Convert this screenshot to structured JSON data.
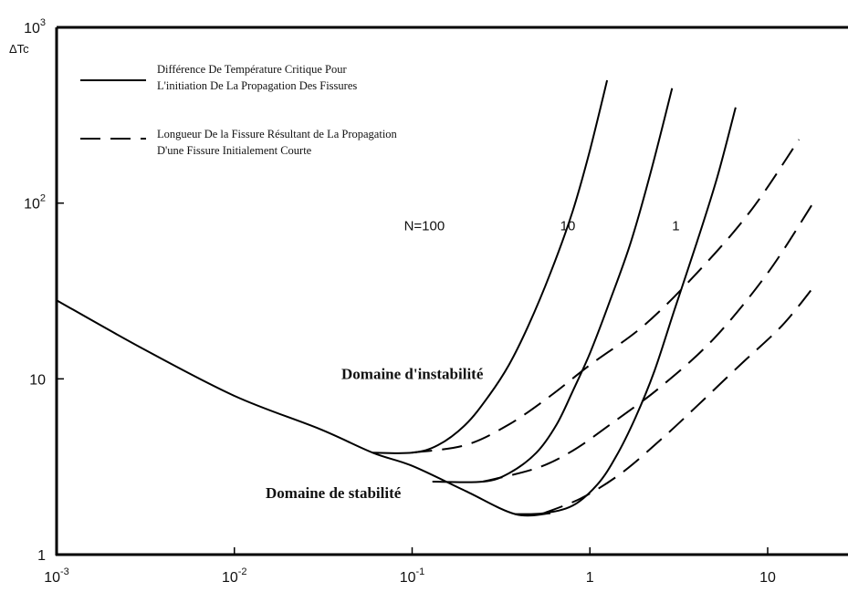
{
  "chart_data": {
    "type": "line",
    "title": "",
    "xlabel": "",
    "ylabel": "ΔTc",
    "xscale": "log",
    "yscale": "log",
    "xlim": [
      0.001,
      20
    ],
    "ylim": [
      1,
      1000
    ],
    "grid": false,
    "x_ticks": [
      {
        "value": 0.001,
        "base": "10",
        "exp": "-3"
      },
      {
        "value": 0.01,
        "base": "10",
        "exp": "-2"
      },
      {
        "value": 0.1,
        "base": "10",
        "exp": "-1"
      },
      {
        "value": 1,
        "base": "1",
        "exp": ""
      },
      {
        "value": 10,
        "base": "10",
        "exp": ""
      }
    ],
    "y_ticks": [
      {
        "value": 1,
        "base": "1",
        "exp": ""
      },
      {
        "value": 10,
        "base": "10",
        "exp": ""
      },
      {
        "value": 100,
        "base": "10",
        "exp": "2"
      },
      {
        "value": 1000,
        "base": "10",
        "exp": "3"
      }
    ],
    "legend": [
      {
        "style": "solid",
        "lines": [
          "Différence De Température Critique Pour",
          "L'initiation De La Propagation Des Fissures"
        ]
      },
      {
        "style": "dashed",
        "lines": [
          "Longueur De la Fissure Résultant de La Propagation",
          "D'une Fissure Initialement Courte"
        ]
      }
    ],
    "annotations": [
      {
        "text": "Domaine d'instabilité",
        "x": 0.04,
        "y": 10
      },
      {
        "text": "Domaine de stabilité",
        "x": 0.015,
        "y": 2.1
      },
      {
        "text": "N=100",
        "x": 0.09,
        "y": 70
      },
      {
        "text": "10",
        "x": 0.68,
        "y": 70
      },
      {
        "text": "1",
        "x": 2.9,
        "y": 70
      }
    ],
    "series": [
      {
        "style": "solid",
        "points": [
          [
            0.001,
            28
          ],
          [
            0.003,
            15
          ],
          [
            0.01,
            8
          ],
          [
            0.03,
            5.2
          ],
          [
            0.06,
            3.8
          ],
          [
            0.1,
            3.2
          ],
          [
            0.2,
            2.3
          ],
          [
            0.38,
            1.7
          ],
          [
            0.6,
            1.72
          ]
        ]
      },
      {
        "style": "solid",
        "points": [
          [
            0.06,
            3.8
          ],
          [
            0.1,
            3.8
          ],
          [
            0.14,
            4.2
          ],
          [
            0.2,
            5.5
          ],
          [
            0.27,
            8
          ],
          [
            0.35,
            12
          ],
          [
            0.45,
            20
          ],
          [
            0.6,
            40
          ],
          [
            0.8,
            90
          ],
          [
            1.0,
            200
          ],
          [
            1.25,
            500
          ]
        ]
      },
      {
        "style": "solid",
        "points": [
          [
            0.13,
            2.6
          ],
          [
            0.25,
            2.6
          ],
          [
            0.35,
            2.9
          ],
          [
            0.5,
            3.8
          ],
          [
            0.65,
            5.5
          ],
          [
            0.8,
            8.5
          ],
          [
            1.0,
            14
          ],
          [
            1.3,
            28
          ],
          [
            1.7,
            60
          ],
          [
            2.2,
            150
          ],
          [
            2.9,
            450
          ]
        ]
      },
      {
        "style": "solid",
        "points": [
          [
            0.38,
            1.7
          ],
          [
            0.55,
            1.72
          ],
          [
            0.8,
            1.9
          ],
          [
            1.1,
            2.5
          ],
          [
            1.4,
            3.6
          ],
          [
            1.8,
            6
          ],
          [
            2.3,
            11
          ],
          [
            3.0,
            25
          ],
          [
            4.0,
            60
          ],
          [
            5.2,
            140
          ],
          [
            6.6,
            350
          ]
        ]
      },
      {
        "style": "dashed",
        "points": [
          [
            0.1,
            3.8
          ],
          [
            0.2,
            4.2
          ],
          [
            0.35,
            5.5
          ],
          [
            0.6,
            8
          ],
          [
            1.0,
            12
          ],
          [
            2.0,
            20
          ],
          [
            4.0,
            40
          ],
          [
            8.0,
            90
          ],
          [
            15,
            230
          ]
        ]
      },
      {
        "style": "dashed",
        "points": [
          [
            0.25,
            2.6
          ],
          [
            0.5,
            3.1
          ],
          [
            0.8,
            3.9
          ],
          [
            1.3,
            5.5
          ],
          [
            2.5,
            9
          ],
          [
            5.0,
            17
          ],
          [
            10,
            40
          ],
          [
            18,
            100
          ]
        ]
      },
      {
        "style": "dashed",
        "points": [
          [
            0.55,
            1.72
          ],
          [
            0.9,
            2.1
          ],
          [
            1.5,
            2.9
          ],
          [
            2.5,
            4.5
          ],
          [
            4.0,
            7
          ],
          [
            7.0,
            12
          ],
          [
            12,
            20
          ],
          [
            18,
            33
          ]
        ]
      }
    ]
  }
}
